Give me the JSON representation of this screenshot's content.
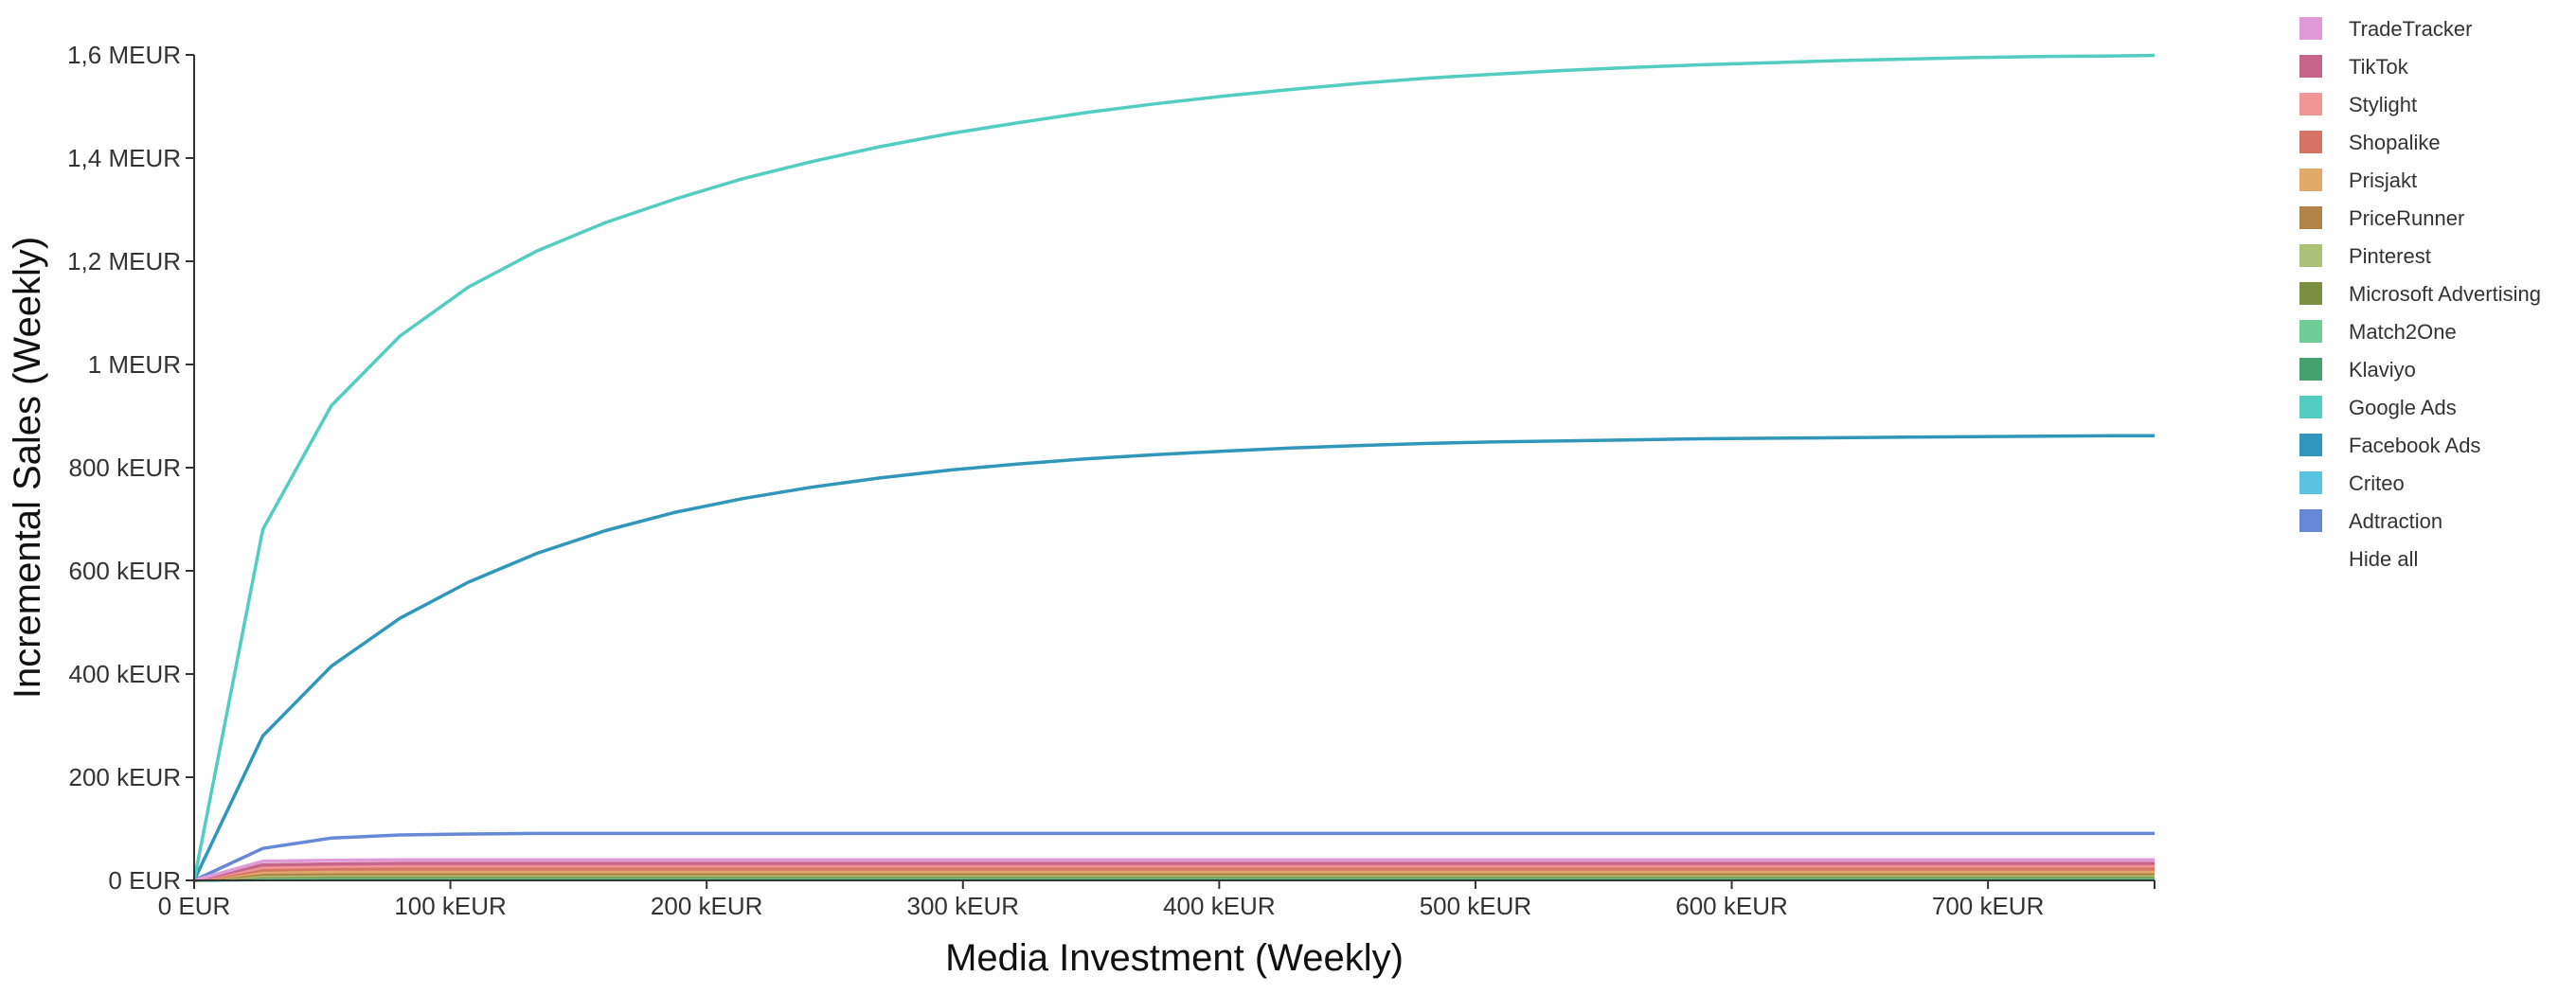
{
  "chart_data": {
    "type": "line",
    "xlabel": "Media Investment (Weekly)",
    "ylabel": "Incremental Sales (Weekly)",
    "xlim": [
      0,
      765000
    ],
    "ylim": [
      0,
      1600000
    ],
    "x_ticks": [
      {
        "value": 0,
        "label": "0 EUR"
      },
      {
        "value": 100000,
        "label": "100 kEUR"
      },
      {
        "value": 200000,
        "label": "200 kEUR"
      },
      {
        "value": 300000,
        "label": "300 kEUR"
      },
      {
        "value": 400000,
        "label": "400 kEUR"
      },
      {
        "value": 500000,
        "label": "500 kEUR"
      },
      {
        "value": 600000,
        "label": "600 kEUR"
      },
      {
        "value": 700000,
        "label": "700 kEUR"
      }
    ],
    "y_ticks": [
      {
        "value": 0,
        "label": "0 EUR"
      },
      {
        "value": 200000,
        "label": "200 kEUR"
      },
      {
        "value": 400000,
        "label": "400 kEUR"
      },
      {
        "value": 600000,
        "label": "600 kEUR"
      },
      {
        "value": 800000,
        "label": "800 kEUR"
      },
      {
        "value": 1000000,
        "label": "1 MEUR"
      },
      {
        "value": 1200000,
        "label": "1,2 MEUR"
      },
      {
        "value": 1400000,
        "label": "1,4 MEUR"
      },
      {
        "value": 1600000,
        "label": "1,6 MEUR"
      }
    ],
    "grid": false,
    "legend_position": "right",
    "x": [
      0,
      26800,
      53500,
      80300,
      107000,
      133800,
      160500,
      187300,
      214000,
      240800,
      267500,
      294300,
      321000,
      347800,
      374500,
      401300,
      428000,
      454800,
      481500,
      508300,
      535000,
      561800,
      588500,
      615300,
      642000,
      668800,
      695500,
      722300,
      749000,
      765000
    ],
    "series": [
      {
        "name": "TradeTracker",
        "color": "#e19ad8",
        "values": [
          0,
          37000,
          39000,
          40000,
          40000,
          40000,
          40000,
          40000,
          40000,
          40000,
          40000,
          40000,
          40000,
          40000,
          40000,
          40000,
          40000,
          40000,
          40000,
          40000,
          40000,
          40000,
          40000,
          40000,
          40000,
          40000,
          40000,
          40000,
          40000,
          40000
        ]
      },
      {
        "name": "TikTok",
        "color": "#c6648a",
        "values": [
          0,
          30000,
          32000,
          33000,
          33000,
          33000,
          33000,
          33000,
          33000,
          33000,
          33000,
          33000,
          33000,
          33000,
          33000,
          33000,
          33000,
          33000,
          33000,
          33000,
          33000,
          33000,
          33000,
          33000,
          33000,
          33000,
          33000,
          33000,
          33000,
          33000
        ]
      },
      {
        "name": "Stylight",
        "color": "#ef9595",
        "values": [
          0,
          25000,
          27000,
          28000,
          28000,
          28000,
          28000,
          28000,
          28000,
          28000,
          28000,
          28000,
          28000,
          28000,
          28000,
          28000,
          28000,
          28000,
          28000,
          28000,
          28000,
          28000,
          28000,
          28000,
          28000,
          28000,
          28000,
          28000,
          28000,
          28000
        ]
      },
      {
        "name": "Shopalike",
        "color": "#d57466",
        "values": [
          0,
          20000,
          22000,
          22000,
          22000,
          22000,
          22000,
          22000,
          22000,
          22000,
          22000,
          22000,
          22000,
          22000,
          22000,
          22000,
          22000,
          22000,
          22000,
          22000,
          22000,
          22000,
          22000,
          22000,
          22000,
          22000,
          22000,
          22000,
          22000,
          22000
        ]
      },
      {
        "name": "Prisjakt",
        "color": "#e2aa6a",
        "values": [
          0,
          16000,
          17000,
          17000,
          17000,
          17000,
          17000,
          17000,
          17000,
          17000,
          17000,
          17000,
          17000,
          17000,
          17000,
          17000,
          17000,
          17000,
          17000,
          17000,
          17000,
          17000,
          17000,
          17000,
          17000,
          17000,
          17000,
          17000,
          17000,
          17000
        ]
      },
      {
        "name": "PriceRunner",
        "color": "#b08448",
        "values": [
          0,
          12000,
          13000,
          13000,
          13000,
          13000,
          13000,
          13000,
          13000,
          13000,
          13000,
          13000,
          13000,
          13000,
          13000,
          13000,
          13000,
          13000,
          13000,
          13000,
          13000,
          13000,
          13000,
          13000,
          13000,
          13000,
          13000,
          13000,
          13000,
          13000
        ]
      },
      {
        "name": "Pinterest",
        "color": "#aac277",
        "values": [
          0,
          9000,
          10000,
          10000,
          10000,
          10000,
          10000,
          10000,
          10000,
          10000,
          10000,
          10000,
          10000,
          10000,
          10000,
          10000,
          10000,
          10000,
          10000,
          10000,
          10000,
          10000,
          10000,
          10000,
          10000,
          10000,
          10000,
          10000,
          10000,
          10000
        ]
      },
      {
        "name": "Microsoft Advertising",
        "color": "#7b8f42",
        "values": [
          0,
          7000,
          7500,
          7500,
          7500,
          7500,
          7500,
          7500,
          7500,
          7500,
          7500,
          7500,
          7500,
          7500,
          7500,
          7500,
          7500,
          7500,
          7500,
          7500,
          7500,
          7500,
          7500,
          7500,
          7500,
          7500,
          7500,
          7500,
          7500,
          7500
        ]
      },
      {
        "name": "Match2One",
        "color": "#6fcc95",
        "values": [
          0,
          5000,
          5500,
          5500,
          5500,
          5500,
          5500,
          5500,
          5500,
          5500,
          5500,
          5500,
          5500,
          5500,
          5500,
          5500,
          5500,
          5500,
          5500,
          5500,
          5500,
          5500,
          5500,
          5500,
          5500,
          5500,
          5500,
          5500,
          5500,
          5500
        ]
      },
      {
        "name": "Klaviyo",
        "color": "#46a06f",
        "values": [
          0,
          3000,
          3500,
          3500,
          3500,
          3500,
          3500,
          3500,
          3500,
          3500,
          3500,
          3500,
          3500,
          3500,
          3500,
          3500,
          3500,
          3500,
          3500,
          3500,
          3500,
          3500,
          3500,
          3500,
          3500,
          3500,
          3500,
          3500,
          3500,
          3500
        ]
      },
      {
        "name": "Google Ads",
        "color": "#52cdc0",
        "values": [
          0,
          680000,
          920000,
          1055000,
          1150000,
          1220000,
          1275000,
          1320000,
          1360000,
          1393000,
          1422000,
          1447000,
          1468000,
          1488000,
          1505000,
          1520000,
          1533000,
          1545000,
          1555000,
          1563000,
          1570000,
          1576000,
          1581000,
          1585000,
          1589000,
          1592000,
          1595000,
          1597000,
          1598000,
          1599000
        ]
      },
      {
        "name": "Facebook Ads",
        "color": "#3197ba",
        "values": [
          0,
          280000,
          415000,
          508000,
          578000,
          634000,
          678000,
          713000,
          740000,
          762000,
          780000,
          795000,
          807000,
          817000,
          825000,
          832000,
          838000,
          843000,
          847000,
          850000,
          852000,
          854000,
          856000,
          857000,
          858000,
          859000,
          860000,
          861000,
          862000,
          862000
        ]
      },
      {
        "name": "Criteo",
        "color": "#58c4e0",
        "values": [
          0,
          1500,
          1800,
          1800,
          1800,
          1800,
          1800,
          1800,
          1800,
          1800,
          1800,
          1800,
          1800,
          1800,
          1800,
          1800,
          1800,
          1800,
          1800,
          1800,
          1800,
          1800,
          1800,
          1800,
          1800,
          1800,
          1800,
          1800,
          1800,
          1800
        ]
      },
      {
        "name": "Adtraction",
        "color": "#6688d6",
        "values": [
          0,
          62000,
          82000,
          88000,
          90000,
          91000,
          91000,
          91000,
          91000,
          91000,
          91000,
          91000,
          91000,
          91000,
          91000,
          91000,
          91000,
          91000,
          91000,
          91000,
          91000,
          91000,
          91000,
          91000,
          91000,
          91000,
          91000,
          91000,
          91000,
          91000
        ]
      }
    ],
    "legend_extra": "Hide all"
  }
}
